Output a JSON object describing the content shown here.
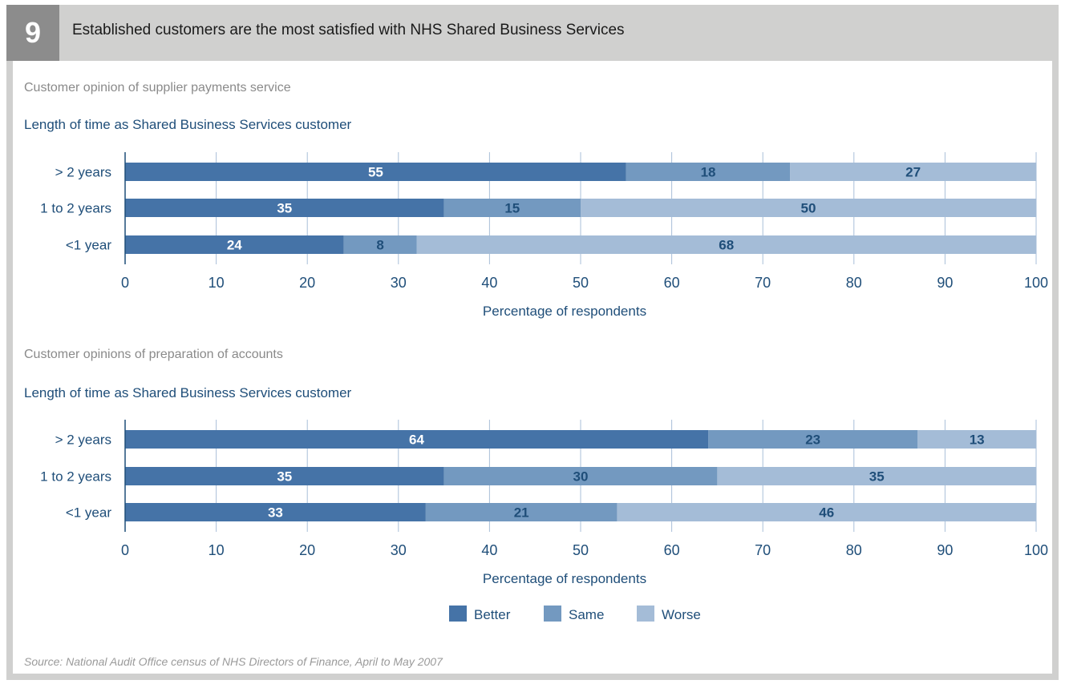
{
  "figure": {
    "number": "9",
    "title": "Established customers are the most satisfied with NHS Shared Business Services",
    "source": "Source: National Audit Office census of NHS Directors of Finance, April to May 2007"
  },
  "colors": {
    "header_bg": "#d0d0cf",
    "badge_bg": "#8c8c8c",
    "text_blue": "#1f4e79",
    "better": "#4573a7",
    "same": "#7399c0",
    "worse": "#a4bcd7"
  },
  "legend": [
    {
      "label": "Better",
      "color_key": "better"
    },
    {
      "label": "Same",
      "color_key": "same"
    },
    {
      "label": "Worse",
      "color_key": "worse"
    }
  ],
  "chart_data": [
    {
      "type": "bar",
      "orientation": "horizontal",
      "stacked": true,
      "title": "Customer opinion of supplier payments service",
      "ylabel": "Length of time as Shared Business Services customer",
      "xlabel": "Percentage of respondents",
      "xlim": [
        0,
        100
      ],
      "xticks": [
        "0",
        "10",
        "20",
        "30",
        "40",
        "50",
        "60",
        "70",
        "80",
        "90",
        "100"
      ],
      "grid": "vertical",
      "categories": [
        "> 2 years",
        "1 to 2 years",
        "<1 year"
      ],
      "series": [
        {
          "name": "Better",
          "values": [
            55,
            35,
            24
          ]
        },
        {
          "name": "Same",
          "values": [
            18,
            15,
            8
          ]
        },
        {
          "name": "Worse",
          "values": [
            27,
            50,
            68
          ]
        }
      ]
    },
    {
      "type": "bar",
      "orientation": "horizontal",
      "stacked": true,
      "title": "Customer opinions of preparation of accounts",
      "ylabel": "Length of time as Shared Business Services customer",
      "xlabel": "Percentage of respondents",
      "xlim": [
        0,
        100
      ],
      "xticks": [
        "0",
        "10",
        "20",
        "30",
        "40",
        "50",
        "60",
        "70",
        "80",
        "90",
        "100"
      ],
      "grid": "vertical",
      "legend_position": "bottom-center",
      "categories": [
        "> 2 years",
        "1 to 2 years",
        "<1 year"
      ],
      "series": [
        {
          "name": "Better",
          "values": [
            64,
            35,
            33
          ]
        },
        {
          "name": "Same",
          "values": [
            23,
            30,
            21
          ]
        },
        {
          "name": "Worse",
          "values": [
            13,
            35,
            46
          ]
        }
      ]
    }
  ]
}
